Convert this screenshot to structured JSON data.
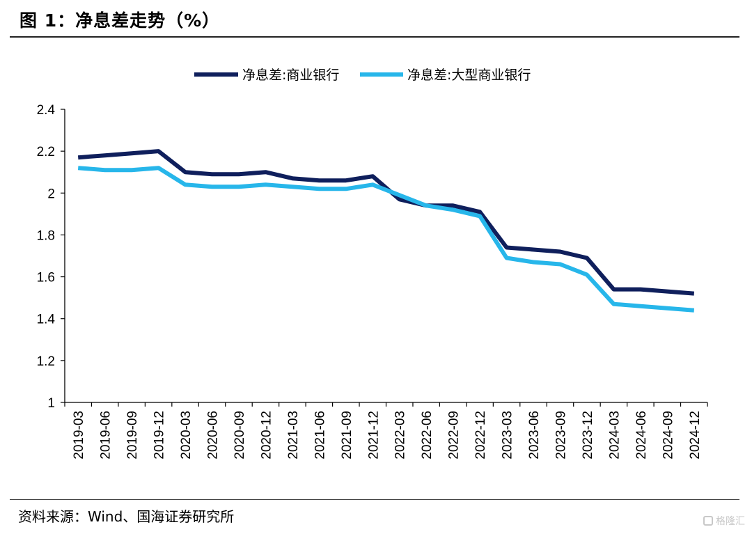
{
  "figure_title": "图 1：净息差走势（%）",
  "source": "资料来源：Wind、国海证券研究所",
  "watermark": "格隆汇",
  "chart_data": {
    "type": "line",
    "x": [
      "2019-03",
      "2019-06",
      "2019-09",
      "2019-12",
      "2020-03",
      "2020-06",
      "2020-09",
      "2020-12",
      "2021-03",
      "2021-06",
      "2021-09",
      "2021-12",
      "2022-03",
      "2022-06",
      "2022-09",
      "2022-12",
      "2023-03",
      "2023-06",
      "2023-09",
      "2023-12",
      "2024-03",
      "2024-06",
      "2024-09",
      "2024-12"
    ],
    "series": [
      {
        "name": "净息差:商业银行",
        "color": "#0f1f5c",
        "values": [
          2.17,
          2.18,
          2.19,
          2.2,
          2.1,
          2.09,
          2.09,
          2.1,
          2.07,
          2.06,
          2.06,
          2.08,
          1.97,
          1.94,
          1.94,
          1.91,
          1.74,
          1.73,
          1.72,
          1.69,
          1.54,
          1.54,
          1.53,
          1.52
        ]
      },
      {
        "name": "净息差:大型商业银行",
        "color": "#27b6ea",
        "values": [
          2.12,
          2.11,
          2.11,
          2.12,
          2.04,
          2.03,
          2.03,
          2.04,
          2.03,
          2.02,
          2.02,
          2.04,
          1.99,
          1.94,
          1.92,
          1.89,
          1.69,
          1.67,
          1.66,
          1.61,
          1.47,
          1.46,
          1.45,
          1.44
        ]
      }
    ],
    "ylim": [
      1,
      2.4
    ],
    "yticks": [
      "1",
      "1.2",
      "1.4",
      "1.6",
      "1.8",
      "2",
      "2.2",
      "2.4"
    ],
    "legend_position": "top-center",
    "grid": false
  }
}
